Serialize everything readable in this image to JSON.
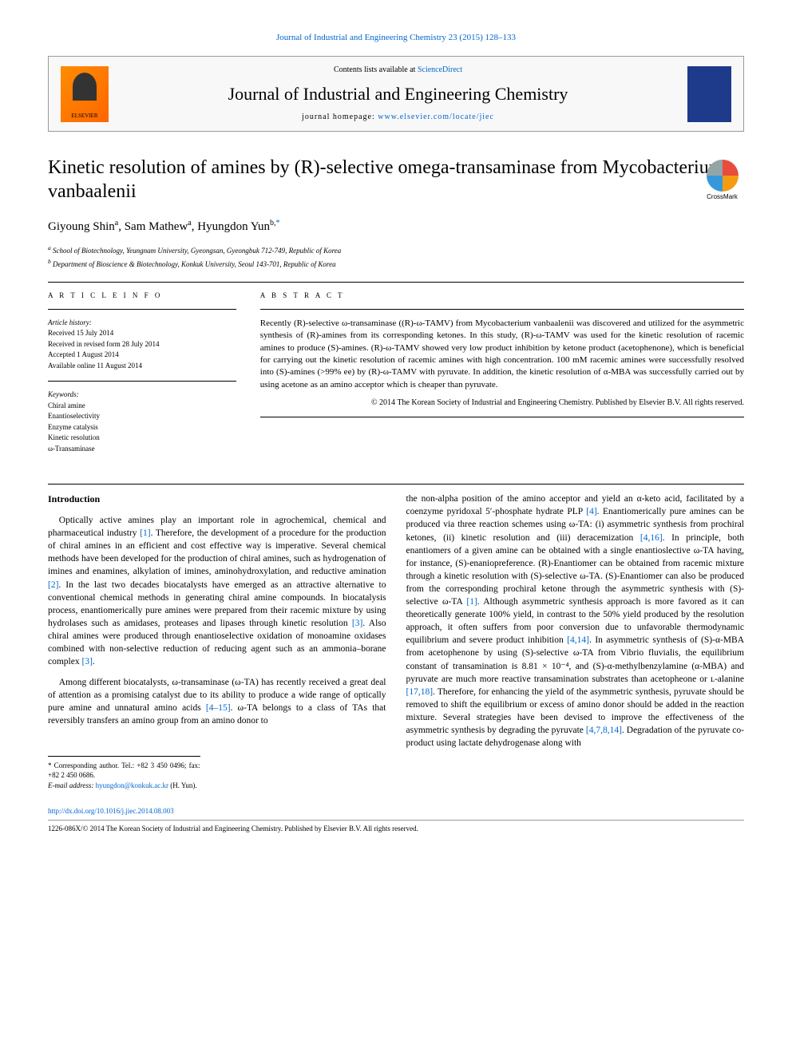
{
  "header": {
    "citation": "Journal of Industrial and Engineering Chemistry 23 (2015) 128–133",
    "contents_prefix": "Contents lists available at ",
    "contents_link": "ScienceDirect",
    "journal_name": "Journal of Industrial and Engineering Chemistry",
    "homepage_prefix": "journal homepage: ",
    "homepage_link": "www.elsevier.com/locate/jiec",
    "publisher_logo": "ELSEVIER",
    "crossmark": "CrossMark"
  },
  "title": "Kinetic resolution of amines by (R)-selective omega-transaminase from Mycobacterium vanbaalenii",
  "authors": {
    "a1_name": "Giyoung Shin",
    "a1_aff": "a",
    "a2_name": "Sam Mathew",
    "a2_aff": "a",
    "a3_name": "Hyungdon Yun",
    "a3_aff": "b,",
    "a3_corr": "*"
  },
  "affiliations": {
    "a": "School of Biotechnology, Yeungnam University, Gyeongsan, Gyeongbuk 712-749, Republic of Korea",
    "b": "Department of Bioscience & Biotechnology, Konkuk University, Seoul 143-701, Republic of Korea"
  },
  "info": {
    "heading": "A R T I C L E   I N F O",
    "history_label": "Article history:",
    "received": "Received 15 July 2014",
    "revised": "Received in revised form 28 July 2014",
    "accepted": "Accepted 1 August 2014",
    "online": "Available online 11 August 2014",
    "keywords_label": "Keywords:",
    "k1": "Chiral amine",
    "k2": "Enantioselectivity",
    "k3": "Enzyme catalysis",
    "k4": "Kinetic resolution",
    "k5": "ω-Transaminase"
  },
  "abstract": {
    "heading": "A B S T R A C T",
    "text": "Recently (R)-selective ω-transaminase ((R)-ω-TAMV) from Mycobacterium vanbaalenii was discovered and utilized for the asymmetric synthesis of (R)-amines from its corresponding ketones. In this study, (R)-ω-TAMV was used for the kinetic resolution of racemic amines to produce (S)-amines. (R)-ω-TAMV showed very low product inhibition by ketone product (acetophenone), which is beneficial for carrying out the kinetic resolution of racemic amines with high concentration. 100 mM racemic amines were successfully resolved into (S)-amines (>99% ee) by (R)-ω-TAMV with pyruvate. In addition, the kinetic resolution of α-MBA was successfully carried out by using acetone as an amino acceptor which is cheaper than pyruvate.",
    "copyright": "© 2014 The Korean Society of Industrial and Engineering Chemistry. Published by Elsevier B.V. All rights reserved."
  },
  "body": {
    "intro_heading": "Introduction",
    "p1a": "Optically active amines play an important role in agrochemical, chemical and pharmaceutical industry ",
    "r1": "[1]",
    "p1b": ". Therefore, the development of a procedure for the production of chiral amines in an efficient and cost effective way is imperative. Several chemical methods have been developed for the production of chiral amines, such as hydrogenation of imines and enamines, alkylation of imines, aminohydroxylation, and reductive amination ",
    "r2": "[2]",
    "p1c": ". In the last two decades biocatalysts have emerged as an attractive alternative to conventional chemical methods in generating chiral amine compounds. In biocatalysis process, enantiomerically pure amines were prepared from their racemic mixture by using hydrolases such as amidases, proteases and lipases through kinetic resolution ",
    "r3": "[3]",
    "p1d": ". Also chiral amines were produced through enantioselective oxidation of monoamine oxidases combined with non-selective reduction of reducing agent such as an ammonia–borane complex ",
    "r3b": "[3]",
    "p1e": ".",
    "p2a": "Among different biocatalysts, ω-transaminase (ω-TA) has recently received a great deal of attention as a promising catalyst due to its ability to produce a wide range of optically pure amine and unnatural amino acids ",
    "r4_15": "[4–15]",
    "p2b": ". ω-TA belongs to a class of TAs that reversibly transfers an amino group from an amino donor to",
    "p3a": "the non-alpha position of the amino acceptor and yield an α-keto acid, facilitated by a coenzyme pyridoxal 5′-phosphate hydrate PLP ",
    "r4": "[4]",
    "p3b": ". Enantiomerically pure amines can be produced via three reaction schemes using ω-TA: (i) asymmetric synthesis from prochiral ketones, (ii) kinetic resolution and (iii) deracemization ",
    "r4_16": "[4,16]",
    "p3c": ". In principle, both enantiomers of a given amine can be obtained with a single enantioslective ω-TA having, for instance, (S)-enaniopreference. (R)-Enantiomer can be obtained from racemic mixture through a kinetic resolution with (S)-selective ω-TA. (S)-Enantiomer can also be produced from the corresponding prochiral ketone through the asymmetric synthesis with (S)-selective ω-TA ",
    "r1b": "[1]",
    "p3d": ". Although asymmetric synthesis approach is more favored as it can theoretically generate 100% yield, in contrast to the 50% yield produced by the resolution approach, it often suffers from poor conversion due to unfavorable thermodynamic equilibrium and severe product inhibition ",
    "r4_14": "[4,14]",
    "p3e": ". In asymmetric synthesis of (S)-α-MBA from acetophenone by using (S)-selective ω-TA from Vibrio fluvialis, the equilibrium constant of transamination is 8.81 × 10⁻⁴, and (S)-α-methylbenzylamine (α-MBA) and pyruvate are much more reactive transamination substrates than acetopheone or ",
    "p3f": "ʟ-alanine ",
    "r17_18": "[17,18]",
    "p3g": ". Therefore, for enhancing the yield of the asymmetric synthesis, pyruvate should be removed to shift the equilibrium or excess of amino donor should be added in the reaction mixture. Several strategies have been devised to improve the effectiveness of the asymmetric synthesis by degrading the pyruvate ",
    "r4_7_8_14": "[4,7,8,14]",
    "p3h": ". Degradation of the pyruvate co-product using lactate dehydrogenase along with"
  },
  "footnote": {
    "corr": "* Corresponding author. Tel.: +82 3 450 0496; fax: +82 2 450 0686.",
    "email_label": "E-mail address: ",
    "email": "hyungdon@konkuk.ac.kr",
    "email_name": " (H. Yun)."
  },
  "footer": {
    "doi": "http://dx.doi.org/10.1016/j.jiec.2014.08.003",
    "issn": "1226-086X/© 2014 The Korean Society of Industrial and Engineering Chemistry. Published by Elsevier B.V. All rights reserved."
  },
  "colors": {
    "link": "#0066cc",
    "text": "#000000",
    "bg": "#ffffff"
  }
}
